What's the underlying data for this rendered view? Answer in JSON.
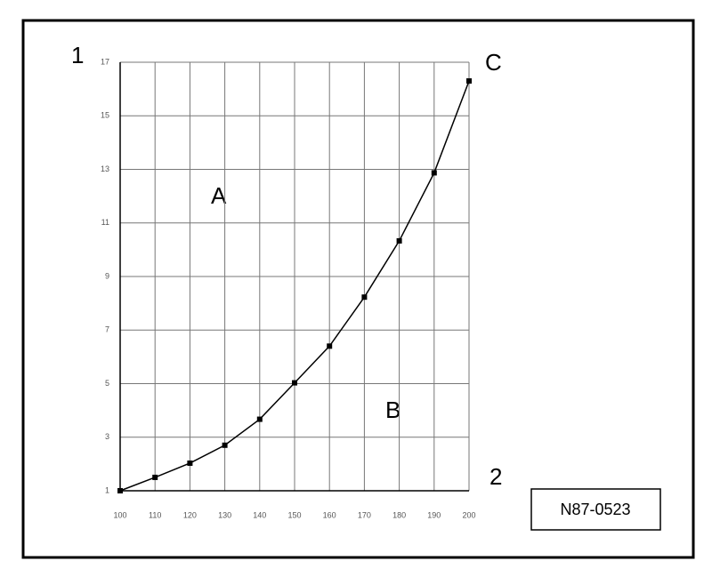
{
  "chart_data": {
    "type": "line",
    "y_axis_label": "1",
    "x_axis_label": "2",
    "annotations": [
      "A",
      "B",
      "C"
    ],
    "code": "N87-0523",
    "x": [
      100,
      110,
      120,
      130,
      140,
      150,
      160,
      170,
      180,
      190,
      200
    ],
    "series": [
      {
        "color": "#000000",
        "values": [
          1,
          1.5,
          2.03,
          2.7,
          3.67,
          5.03,
          6.4,
          8.23,
          10.33,
          12.87,
          16.3
        ]
      }
    ],
    "xlim": [
      100,
      200
    ],
    "xticks": [
      100,
      110,
      120,
      130,
      140,
      150,
      160,
      170,
      180,
      190,
      200
    ],
    "ylim": [
      1,
      17
    ],
    "yticks": [
      1,
      3,
      5,
      7,
      9,
      11,
      13,
      15,
      17
    ],
    "grid": true
  }
}
